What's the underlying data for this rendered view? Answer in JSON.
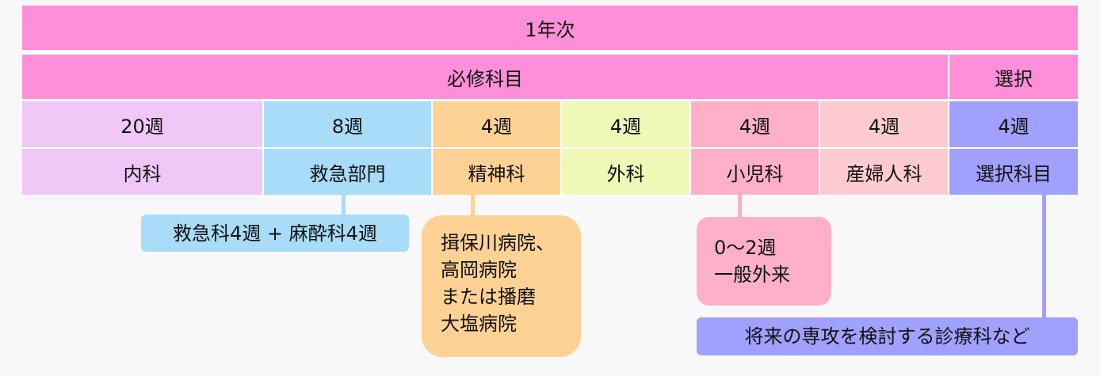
{
  "colors": {
    "header": "#ff8fd8",
    "internal": "#f0c8f8",
    "emergency": "#a8dcf8",
    "psychiatry": "#fed294",
    "surgery": "#f0f8b8",
    "pediatrics": "#feb0c8",
    "obgyn": "#feccd0",
    "elective": "#a0a0fe"
  },
  "year": "1年次",
  "groups": {
    "required": "必修科目",
    "elective": "選択"
  },
  "columns": [
    {
      "weeks": "20週",
      "name": "内科"
    },
    {
      "weeks": "8週",
      "name": "救急部門"
    },
    {
      "weeks": "4週",
      "name": "精神科"
    },
    {
      "weeks": "4週",
      "name": "外科"
    },
    {
      "weeks": "4週",
      "name": "小児科"
    },
    {
      "weeks": "4週",
      "name": "産婦人科"
    },
    {
      "weeks": "4週",
      "name": "選択科目"
    }
  ],
  "notes": {
    "emergency": "救急科4週 + 麻酔科4週",
    "psychiatry": [
      "揖保川病院、",
      "高岡病院",
      "または播磨",
      "大塩病院"
    ],
    "pediatrics": [
      "0〜2週",
      "一般外来"
    ],
    "elective": "将来の専攻を検討する診療科など"
  }
}
